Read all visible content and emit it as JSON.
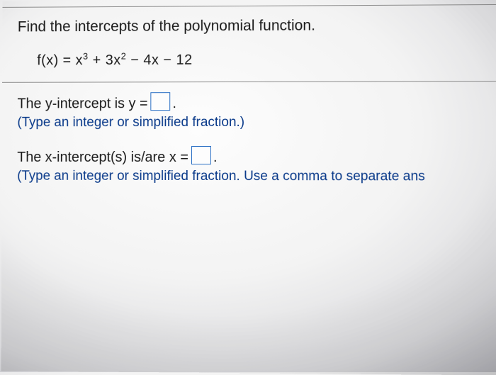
{
  "question": {
    "prompt": "Find the intercepts of the polynomial function.",
    "equation_prefix": "f(x) = x",
    "equation_exp1": "3",
    "equation_mid1": " + 3x",
    "equation_exp2": "2",
    "equation_tail": " − 4x − 12"
  },
  "answers": {
    "y_intercept_label_pre": "The y-intercept is y = ",
    "y_intercept_label_post": ".",
    "y_hint": "(Type an integer or simplified fraction.)",
    "x_intercept_label_pre": "The x-intercept(s) is/are x = ",
    "x_intercept_label_post": ".",
    "x_hint": "(Type an integer or simplified fraction. Use a comma to separate ans"
  },
  "style": {
    "hint_color": "#0a3a8a",
    "box_border": "#2a6fc4"
  }
}
